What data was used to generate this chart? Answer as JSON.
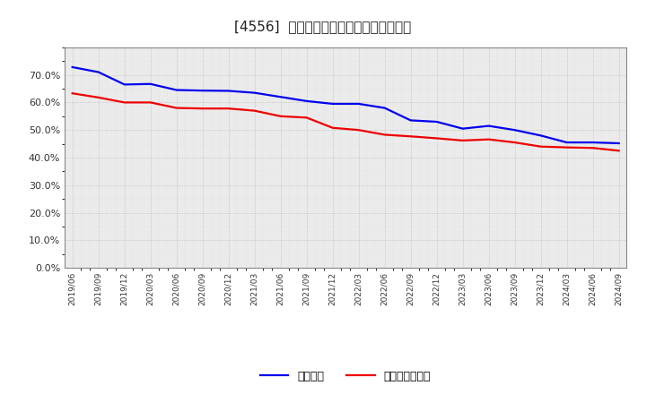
{
  "title": "[4556]  固定比率、固定長期適合率の推移",
  "ylim": [
    0.0,
    0.8
  ],
  "yticks": [
    0.0,
    0.1,
    0.2,
    0.3,
    0.4,
    0.5,
    0.6,
    0.7
  ],
  "plot_bg_color": "#f0f0f0",
  "fig_bg_color": "#ffffff",
  "grid_color": "#aaaaaa",
  "line1_color": "#0000ee",
  "line2_color": "#ee0000",
  "line1_label": "固定比率",
  "line2_label": "固定長期適合率",
  "x_labels": [
    "2019/06",
    "2019/09",
    "2019/12",
    "2020/03",
    "2020/06",
    "2020/09",
    "2020/12",
    "2021/03",
    "2021/06",
    "2021/09",
    "2021/12",
    "2022/03",
    "2022/06",
    "2022/09",
    "2022/12",
    "2023/03",
    "2023/06",
    "2023/09",
    "2023/12",
    "2024/03",
    "2024/06",
    "2024/09"
  ],
  "line1_values": [
    0.728,
    0.71,
    0.665,
    0.667,
    0.645,
    0.643,
    0.642,
    0.635,
    0.62,
    0.605,
    0.595,
    0.595,
    0.58,
    0.535,
    0.53,
    0.505,
    0.515,
    0.5,
    0.48,
    0.455,
    0.455,
    0.452
  ],
  "line2_values": [
    0.633,
    0.618,
    0.6,
    0.6,
    0.58,
    0.578,
    0.578,
    0.57,
    0.55,
    0.545,
    0.508,
    0.5,
    0.483,
    0.477,
    0.47,
    0.462,
    0.466,
    0.455,
    0.44,
    0.437,
    0.435,
    0.425
  ]
}
